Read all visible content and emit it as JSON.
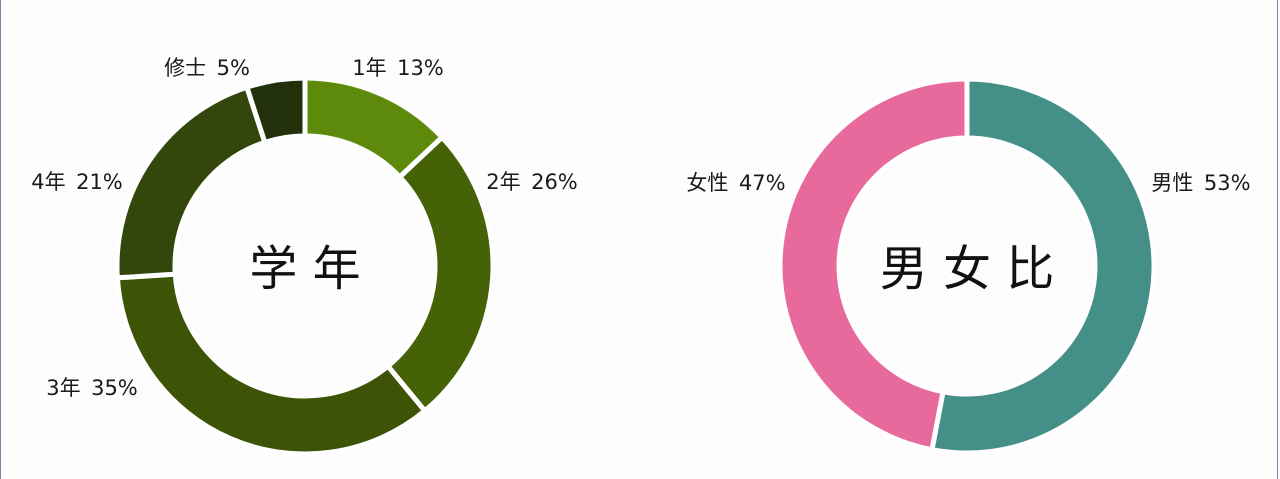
{
  "chart_data": [
    {
      "type": "pie",
      "variant": "donut",
      "title": "学 年",
      "slices": [
        {
          "label": "1年",
          "value": 13,
          "value_label": "13%",
          "color": "#5e8a0c"
        },
        {
          "label": "2年",
          "value": 26,
          "value_label": "26%",
          "color": "#466206"
        },
        {
          "label": "3年",
          "value": 35,
          "value_label": "35%",
          "color": "#3d5406"
        },
        {
          "label": "4年",
          "value": 21,
          "value_label": "21%",
          "color": "#33470c"
        },
        {
          "label": "修士",
          "value": 5,
          "value_label": "5%",
          "color": "#23300c"
        }
      ]
    },
    {
      "type": "pie",
      "variant": "donut",
      "title": "男 女 比",
      "slices": [
        {
          "label": "男性",
          "value": 53,
          "value_label": "53%",
          "color": "#448f87"
        },
        {
          "label": "女性",
          "value": 47,
          "value_label": "47%",
          "color": "#e8699b"
        }
      ]
    }
  ]
}
